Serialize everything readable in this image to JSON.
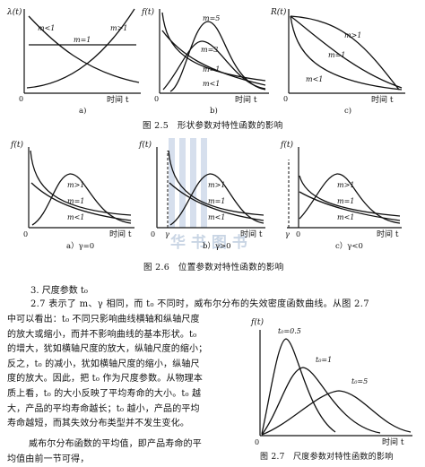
{
  "fig25": {
    "caption": "图 2.5　形状参数对特性函数的影响",
    "a": {
      "ylabel": "λ(t)",
      "xlabel": "时间 t",
      "sub": "a)",
      "origin": "0",
      "labels": [
        "m<1",
        "m>1",
        "m=1"
      ]
    },
    "b": {
      "ylabel": "f(t)",
      "xlabel": "时间 t",
      "sub": "b)",
      "origin": "0",
      "labels": [
        "m=5",
        "m=3",
        "m=1",
        "m<1"
      ]
    },
    "c": {
      "ylabel": "R(t)",
      "xlabel": "时间 t",
      "sub": "c)",
      "origin": "0",
      "labels": [
        "m>1",
        "m=1",
        "m<1"
      ]
    }
  },
  "fig26": {
    "caption": "图 2.6　位置参数对特性函数的影响",
    "a": {
      "ylabel": "f(t)",
      "xlabel": "时间 t",
      "sub": "a）γ=0",
      "origin": "0",
      "labels": [
        "m>1",
        "m=1",
        "m<1"
      ]
    },
    "b": {
      "ylabel": "f(t)",
      "xlabel": "时间 t",
      "sub": "b）γ>0",
      "origin": "0",
      "gamma": "γ",
      "labels": [
        "m>1",
        "m=1",
        "m<1"
      ]
    },
    "c": {
      "ylabel": "f(t)",
      "xlabel": "时间 t",
      "sub": "c）γ<0",
      "origin": "0",
      "gamma": "γ",
      "labels": [
        "m>1",
        "m=1",
        "m<1"
      ]
    }
  },
  "watermark": "华 书 图 书",
  "section_heading": "3. 尺度参数 t₀",
  "paragraph1_full": "2.7 表示了 m、γ 相同，而 t₀ 不同时，威布尔分布的失效密度函数曲线。从图 2.7",
  "paragraph1_lines": [
    "中可以看出：t₀ 不同只影响曲线横轴和纵轴尺度",
    "的放大或缩小，而并不影响曲线的基本形状。t₀",
    "的增大，犹如横轴尺度的放大，纵轴尺度的缩小；",
    "反之，t₀ 的减小，犹如横轴尺度的缩小，纵轴尺",
    "度的放大。因此，把 t₀ 作为尺度参数。从物理本",
    "质上看，t₀ 的大小反映了平均寿命的大小。t₀ 越",
    "大，产品的平均寿命越长；t₀ 越小，产品的平均",
    "寿命越短，而其失效分布类型并不发生变化。"
  ],
  "paragraph2_lines": [
    "威布尔分布函数的平均值，即产品寿命的平",
    "均值由前一节可得，"
  ],
  "fig27": {
    "caption": "图 2.7　尺度参数对特性函数的影响",
    "ylabel": "f(t)",
    "xlabel": "时间 t",
    "origin": "0",
    "labels": [
      "t₀=0.5",
      "t₀=1",
      "t₀=5"
    ]
  }
}
